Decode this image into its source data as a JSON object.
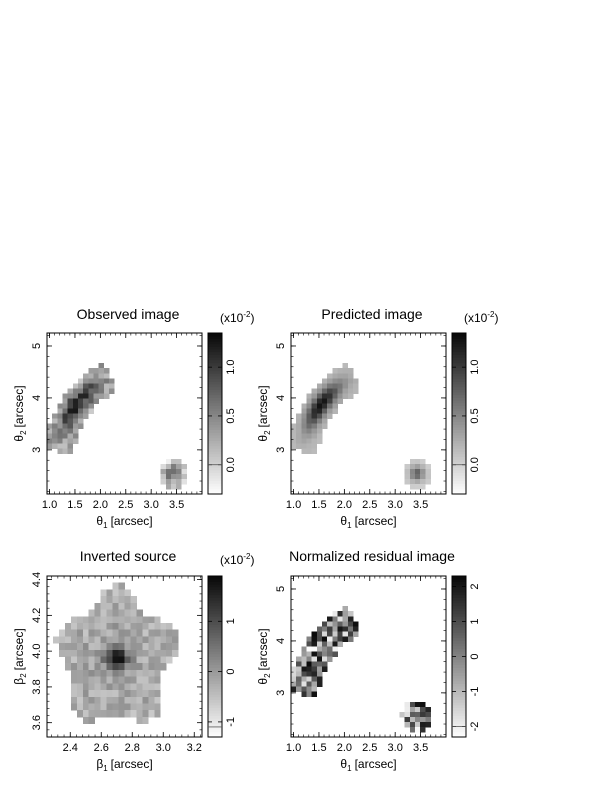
{
  "chart_data": [
    {
      "type": "heatmap",
      "title": "Observed image",
      "xlabel_sym": "θ",
      "xlabel_sub": "1",
      "xlabel_unit": "[arcsec]",
      "ylabel_sym": "θ",
      "ylabel_sub": "2",
      "ylabel_unit": "[arcsec]",
      "xlim": [
        0.95,
        4.0
      ],
      "ylim": [
        2.15,
        5.25
      ],
      "xticks": [
        "1.0",
        "1.5",
        "2.0",
        "2.5",
        "3.0",
        "3.5"
      ],
      "yticks": [
        "3",
        "4",
        "5"
      ],
      "colorbar": {
        "multiplier_base": "(x10",
        "multiplier_exp": "-2",
        "multiplier_close": ")",
        "range": [
          -0.003,
          0.0135
        ],
        "ticks": [
          "0.0",
          "0.5",
          "1.0"
        ],
        "marker": 0.0
      },
      "regions": [
        {
          "name": "arc",
          "type": "arc",
          "cx": 3.1,
          "cy": 2.7,
          "r": 1.95,
          "width": 0.6,
          "angle_range": [
            118,
            172
          ],
          "peak": 0.0125,
          "peak_angle": 143,
          "noise": 0.35,
          "base": 0.2
        },
        {
          "name": "counter-image",
          "type": "blob",
          "cx": 3.43,
          "cy": 2.55,
          "r": 0.28,
          "peak": 0.008,
          "noise": 0.35
        }
      ]
    },
    {
      "type": "heatmap",
      "title": "Predicted image",
      "xlabel_sym": "θ",
      "xlabel_sub": "1",
      "xlabel_unit": "[arcsec]",
      "ylabel_sym": "θ",
      "ylabel_sub": "2",
      "ylabel_unit": "[arcsec]",
      "xlim": [
        0.95,
        4.0
      ],
      "ylim": [
        2.15,
        5.25
      ],
      "xticks": [
        "1.0",
        "1.5",
        "2.0",
        "2.5",
        "3.0",
        "3.5"
      ],
      "yticks": [
        "3",
        "4",
        "5"
      ],
      "colorbar": {
        "multiplier_base": "(x10",
        "multiplier_exp": "-2",
        "multiplier_close": ")",
        "range": [
          -0.003,
          0.0135
        ],
        "ticks": [
          "0.0",
          "0.5",
          "1.0"
        ],
        "marker": 0.0
      },
      "regions": [
        {
          "name": "arc",
          "type": "arc",
          "cx": 3.1,
          "cy": 2.7,
          "r": 1.95,
          "width": 0.6,
          "angle_range": [
            118,
            172
          ],
          "peak": 0.0128,
          "peak_angle": 143,
          "noise": 0.03,
          "base": 0.12
        },
        {
          "name": "counter-image",
          "type": "blob",
          "cx": 3.43,
          "cy": 2.55,
          "r": 0.28,
          "peak": 0.0075,
          "noise": 0.03
        }
      ]
    },
    {
      "type": "heatmap",
      "title": "Inverted source",
      "xlabel_sym": "β",
      "xlabel_sub": "1",
      "xlabel_unit": "[arcsec]",
      "ylabel_sym": "β",
      "ylabel_sub": "2",
      "ylabel_unit": "[arcsec]",
      "xlim": [
        2.25,
        3.25
      ],
      "ylim": [
        3.52,
        4.42
      ],
      "xticks": [
        "2.4",
        "2.6",
        "2.8",
        "3.0",
        "3.2"
      ],
      "yticks": [
        "3.6",
        "3.8",
        "4.0",
        "4.2",
        "4.4"
      ],
      "colorbar": {
        "multiplier_base": "(x10",
        "multiplier_exp": "-2",
        "multiplier_close": ")",
        "range": [
          -0.013,
          0.019
        ],
        "ticks": [
          "-1",
          "0",
          "1"
        ],
        "marker": -0.011
      },
      "regions": [
        {
          "name": "source",
          "type": "source",
          "cx": 2.7,
          "cy": 3.96,
          "peak": 0.018,
          "sigma": 0.07,
          "noise": 0.25
        }
      ]
    },
    {
      "type": "heatmap",
      "title": "Normalized residual image",
      "xlabel_sym": "θ",
      "xlabel_sub": "1",
      "xlabel_unit": "[arcsec]",
      "ylabel_sym": "θ",
      "ylabel_sub": "2",
      "ylabel_unit": "[arcsec]",
      "xlim": [
        0.95,
        4.0
      ],
      "ylim": [
        2.15,
        5.25
      ],
      "xticks": [
        "1.0",
        "1.5",
        "2.0",
        "2.5",
        "3.0",
        "3.5"
      ],
      "yticks": [
        "3",
        "4",
        "5"
      ],
      "colorbar": {
        "multiplier_base": "",
        "multiplier_exp": "",
        "multiplier_close": "",
        "range": [
          -2.3,
          2.3
        ],
        "ticks": [
          "-2",
          "-1",
          "0",
          "1",
          "2"
        ],
        "marker": -2.0
      },
      "regions": [
        {
          "name": "arc",
          "type": "arc",
          "cx": 3.1,
          "cy": 2.7,
          "r": 1.95,
          "width": 0.6,
          "angle_range": [
            118,
            172
          ],
          "peak": 0,
          "peak_angle": 143,
          "noise": 1.0,
          "base": 0
        },
        {
          "name": "counter-image",
          "type": "blob",
          "cx": 3.43,
          "cy": 2.55,
          "r": 0.3,
          "peak": 0,
          "noise": 1.0
        }
      ]
    }
  ]
}
